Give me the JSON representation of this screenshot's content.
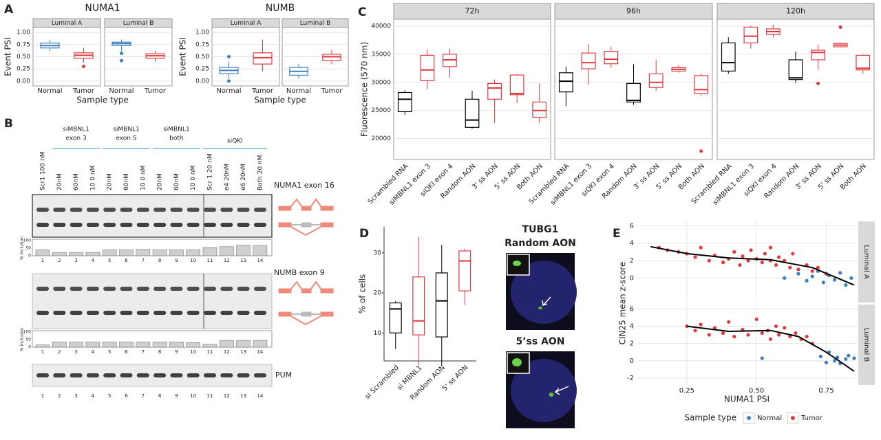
{
  "panel_labels": [
    "A",
    "B",
    "C",
    "D",
    "E"
  ],
  "chart_data": [
    {
      "type": "box",
      "title": "NUMA1",
      "y_label": "Event PSI",
      "x_label": "Sample type",
      "categories": [
        "Normal",
        "Tumor"
      ],
      "colors": [
        "#3c7fc0",
        "#e0393e"
      ],
      "ylim": [
        -0.1,
        1.1
      ],
      "yticks": [
        {
          "value": 0,
          "label": "0.00"
        },
        {
          "value": 0.25,
          "label": "0.25"
        },
        {
          "value": 0.5,
          "label": "0.50"
        },
        {
          "value": 0.75,
          "label": "0.75"
        },
        {
          "value": 1,
          "label": "1.00"
        }
      ],
      "facets": [
        {
          "name": "Luminal A",
          "boxes": [
            {
              "stats": [
                0.62,
                0.68,
                0.73,
                0.78,
                0.85
              ],
              "outliers": []
            },
            {
              "stats": [
                0.38,
                0.47,
                0.53,
                0.58,
                0.68
              ],
              "outliers": [
                0.3
              ]
            }
          ]
        },
        {
          "name": "Luminal B",
          "boxes": [
            {
              "stats": [
                0.62,
                0.73,
                0.77,
                0.8,
                0.85
              ],
              "outliers": [
                0.57,
                0.42
              ]
            },
            {
              "stats": [
                0.4,
                0.47,
                0.52,
                0.56,
                0.62
              ],
              "outliers": []
            }
          ]
        }
      ]
    },
    {
      "type": "box",
      "title": "NUMB",
      "y_label": "Event PSI",
      "x_label": "Sample type",
      "categories": [
        "Normal",
        "Tumor"
      ],
      "colors": [
        "#3c7fc0",
        "#e0393e"
      ],
      "ylim": [
        -0.1,
        1.1
      ],
      "yticks": [
        {
          "value": 0,
          "label": "0.00"
        },
        {
          "value": 0.25,
          "label": "0.25"
        },
        {
          "value": 0.5,
          "label": "0.50"
        },
        {
          "value": 0.75,
          "label": "0.75"
        },
        {
          "value": 1,
          "label": "1.00"
        }
      ],
      "facets": [
        {
          "name": "Luminal A",
          "boxes": [
            {
              "stats": [
                0.05,
                0.15,
                0.22,
                0.28,
                0.4
              ],
              "outliers": [
                0.5,
                0.0
              ]
            },
            {
              "stats": [
                0.2,
                0.35,
                0.48,
                0.58,
                0.85
              ],
              "outliers": []
            }
          ]
        },
        {
          "name": "Luminal B",
          "boxes": [
            {
              "stats": [
                0.05,
                0.12,
                0.2,
                0.28,
                0.35
              ],
              "outliers": []
            },
            {
              "stats": [
                0.35,
                0.42,
                0.5,
                0.55,
                0.65
              ],
              "outliers": []
            }
          ]
        }
      ]
    },
    {
      "type": "box",
      "y_label": "Fluorescence (570 nm)",
      "categories": [
        "Scrambled RNA",
        "siMBNL1 exon 3",
        "siQKI exon 4",
        "Random AON",
        "3' ss AON",
        "5' ss AON",
        "Both AON"
      ],
      "colors": [
        "#000000",
        "#e0393e",
        "#e0393e",
        "#000000",
        "#e0393e",
        "#e0393e",
        "#e0393e"
      ],
      "ylim": [
        16300,
        41200
      ],
      "yticks": [
        20000,
        25000,
        30000,
        35000,
        40000
      ],
      "facets": [
        {
          "name": "72h",
          "boxes": [
            {
              "stats": [
                24200,
                24800,
                27000,
                28200,
                28600
              ],
              "outliers": []
            },
            {
              "stats": [
                28800,
                30300,
                32200,
                34800,
                35800
              ],
              "outliers": []
            },
            {
              "stats": [
                30800,
                32800,
                34000,
                35000,
                36000
              ],
              "outliers": []
            },
            {
              "stats": [
                21800,
                22000,
                23300,
                27000,
                28500
              ],
              "outliers": []
            },
            {
              "stats": [
                22800,
                27000,
                29000,
                29800,
                30500
              ],
              "outliers": []
            },
            {
              "stats": [
                26300,
                27800,
                28000,
                31300,
                31500
              ],
              "outliers": []
            },
            {
              "stats": [
                22800,
                23800,
                25000,
                26500,
                29800
              ],
              "outliers": []
            }
          ]
        },
        {
          "name": "96h",
          "boxes": [
            {
              "stats": [
                25800,
                28300,
                30200,
                31700,
                32800
              ],
              "outliers": []
            },
            {
              "stats": [
                29600,
                32400,
                33500,
                35200,
                36800
              ],
              "outliers": []
            },
            {
              "stats": [
                32600,
                33300,
                34100,
                35500,
                36300
              ],
              "outliers": []
            },
            {
              "stats": [
                26000,
                26500,
                26800,
                29800,
                33200
              ],
              "outliers": []
            },
            {
              "stats": [
                28500,
                29100,
                30000,
                31500,
                34000
              ],
              "outliers": []
            },
            {
              "stats": [
                31700,
                32000,
                32300,
                32600,
                33000
              ],
              "outliers": []
            },
            {
              "stats": [
                27600,
                28000,
                28700,
                31200,
                31500
              ],
              "outliers": [
                17800
              ]
            }
          ]
        },
        {
          "name": "120h",
          "boxes": [
            {
              "stats": [
                31500,
                32000,
                33500,
                37000,
                38000
              ],
              "outliers": []
            },
            {
              "stats": [
                36000,
                37000,
                38200,
                39800,
                40000
              ],
              "outliers": []
            },
            {
              "stats": [
                38000,
                38500,
                39000,
                39500,
                40200
              ],
              "outliers": []
            },
            {
              "stats": [
                29900,
                30500,
                30800,
                34000,
                35500
              ],
              "outliers": []
            },
            {
              "stats": [
                32200,
                34000,
                35300,
                35700,
                36700
              ],
              "outliers": [
                29800
              ]
            },
            {
              "stats": [
                36200,
                36300,
                36600,
                36900,
                37000
              ],
              "outliers": [
                39800
              ]
            },
            {
              "stats": [
                31500,
                32200,
                32500,
                34800,
                35000
              ],
              "outliers": []
            }
          ]
        }
      ]
    },
    {
      "type": "box",
      "y_label": "% of cells",
      "categories": [
        "si Scrambled",
        "si MBNL1",
        "Random AON",
        "5' ss AON"
      ],
      "colors": [
        "#000000",
        "#e0393e",
        "#000000",
        "#e0393e"
      ],
      "ylim": [
        3,
        36.5
      ],
      "yticks": [
        10,
        20,
        30
      ],
      "facets": [
        {
          "boxes": [
            {
              "stats": [
                6,
                10,
                16,
                17.5,
                18
              ],
              "outliers": []
            },
            {
              "stats": [
                2,
                9.5,
                13,
                24,
                34
              ],
              "outliers": []
            },
            {
              "stats": [
                2,
                9,
                18,
                25,
                32
              ],
              "outliers": []
            },
            {
              "stats": [
                17,
                20.5,
                28,
                30.5,
                31
              ],
              "outliers": []
            }
          ]
        }
      ]
    },
    {
      "type": "scatter",
      "x_label": "NUMA1 PSI",
      "y_label": "CIN25 mean z-score",
      "legend_title": "Sample type",
      "series": [
        {
          "name": "Normal",
          "color": "#3c7fc0"
        },
        {
          "name": "Tumor",
          "color": "#e0393e"
        }
      ],
      "xlim": [
        0.07,
        0.86
      ],
      "xticks": [
        0.25,
        {
          "value": 0.5,
          "label": "0.50"
        },
        0.75
      ],
      "ylim": [
        -2.8,
        6.5
      ],
      "facets": [
        {
          "name": "Luminal A",
          "yticks": [
            0,
            2,
            4,
            6
          ],
          "points": [
            {
              "x": [
                0.6,
                0.65,
                0.68,
                0.7,
                0.72,
                0.74,
                0.76,
                0.78,
                0.8,
                0.82,
                0.84
              ],
              "y": [
                0.0,
                0.5,
                -0.3,
                0.2,
                0.8,
                -0.5,
                0.3,
                -0.2,
                0.6,
                -0.8,
                0.0
              ]
            },
            {
              "x": [
                0.15,
                0.18,
                0.22,
                0.25,
                0.28,
                0.3,
                0.33,
                0.35,
                0.38,
                0.4,
                0.42,
                0.44,
                0.45,
                0.47,
                0.48,
                0.5,
                0.52,
                0.53,
                0.55,
                0.55,
                0.57,
                0.58,
                0.6,
                0.62,
                0.63,
                0.65,
                0.68,
                0.7,
                0.72,
                0.75
              ],
              "y": [
                3.5,
                3.2,
                3.0,
                2.8,
                2.4,
                3.5,
                2.0,
                2.6,
                1.8,
                2.2,
                3.0,
                1.5,
                2.5,
                2.0,
                3.2,
                2.2,
                1.8,
                2.8,
                2.0,
                3.5,
                1.5,
                2.4,
                2.0,
                1.2,
                2.8,
                1.0,
                1.5,
                0.8,
                1.2,
                0.5
              ]
            }
          ],
          "trend": {
            "x": [
              0.12,
              0.25,
              0.4,
              0.55,
              0.7,
              0.85
            ],
            "y": [
              3.6,
              2.8,
              2.3,
              2.1,
              1.2,
              -0.8
            ]
          }
        },
        {
          "name": "Luminal B",
          "yticks": [
            -2,
            0,
            2,
            4,
            6
          ],
          "points": [
            {
              "x": [
                0.52,
                0.73,
                0.75,
                0.76,
                0.78,
                0.79,
                0.8,
                0.82,
                0.83,
                0.85
              ],
              "y": [
                0.3,
                0.5,
                -0.2,
                1.0,
                0.0,
                0.4,
                -0.3,
                0.2,
                0.6,
                0.3
              ]
            },
            {
              "x": [
                0.25,
                0.28,
                0.3,
                0.33,
                0.35,
                0.38,
                0.4,
                0.42,
                0.45,
                0.47,
                0.5,
                0.52,
                0.54,
                0.55,
                0.57,
                0.58,
                0.6,
                0.62,
                0.64,
                0.66,
                0.68,
                0.7
              ],
              "y": [
                4.0,
                3.5,
                4.2,
                3.0,
                3.8,
                3.2,
                4.5,
                2.8,
                3.6,
                3.0,
                4.8,
                3.2,
                3.5,
                2.5,
                4.0,
                3.0,
                3.8,
                2.8,
                3.2,
                2.5,
                2.8,
                2.0
              ]
            }
          ],
          "trend": {
            "x": [
              0.25,
              0.4,
              0.55,
              0.65,
              0.75,
              0.85
            ],
            "y": [
              4.0,
              3.4,
              3.5,
              2.8,
              1.0,
              -1.2
            ]
          }
        }
      ]
    }
  ],
  "gels": {
    "groups": [
      {
        "lines": [
          "siMBNL1",
          "exon 3"
        ],
        "lanes": [
          1,
          3
        ]
      },
      {
        "lines": [
          "siMBNL1",
          "exon 5"
        ],
        "lanes": [
          4,
          6
        ]
      },
      {
        "lines": [
          "siMBNL1",
          "both"
        ],
        "lanes": [
          7,
          9
        ]
      },
      {
        "lines": [
          "siQKI"
        ],
        "lanes": [
          10,
          13
        ]
      }
    ],
    "lanes": [
      "Scr1 100 nM",
      "20nM",
      "60nM",
      "10 0 nM",
      "20nM",
      "60nM",
      "10 0 nM",
      "20nM",
      "60nM",
      "10 0 nM",
      "Scr 1 20 nM",
      "e4 20nM",
      "e6 20nM",
      "Both 20 nM"
    ],
    "lane_numbers": [
      1,
      2,
      3,
      4,
      5,
      6,
      7,
      8,
      9,
      10,
      11,
      12,
      13,
      14
    ],
    "inclusion_label": "% inclusion",
    "inclusion_ticks": [
      0,
      50,
      100
    ],
    "blots": [
      {
        "label": "NUMA1 exon 16",
        "inclusion": [
          40,
          22,
          22,
          22,
          40,
          40,
          42,
          40,
          40,
          40,
          55,
          60,
          70,
          68
        ]
      },
      {
        "label": "NUMB exon 9",
        "inclusion": [
          15,
          35,
          35,
          35,
          35,
          35,
          35,
          35,
          35,
          30,
          20,
          45,
          45,
          45
        ]
      },
      {
        "label": "PUM"
      }
    ]
  },
  "microscopy": {
    "gene": "TUBG1",
    "conditions": [
      "Random AON",
      "5’ss AON"
    ]
  }
}
